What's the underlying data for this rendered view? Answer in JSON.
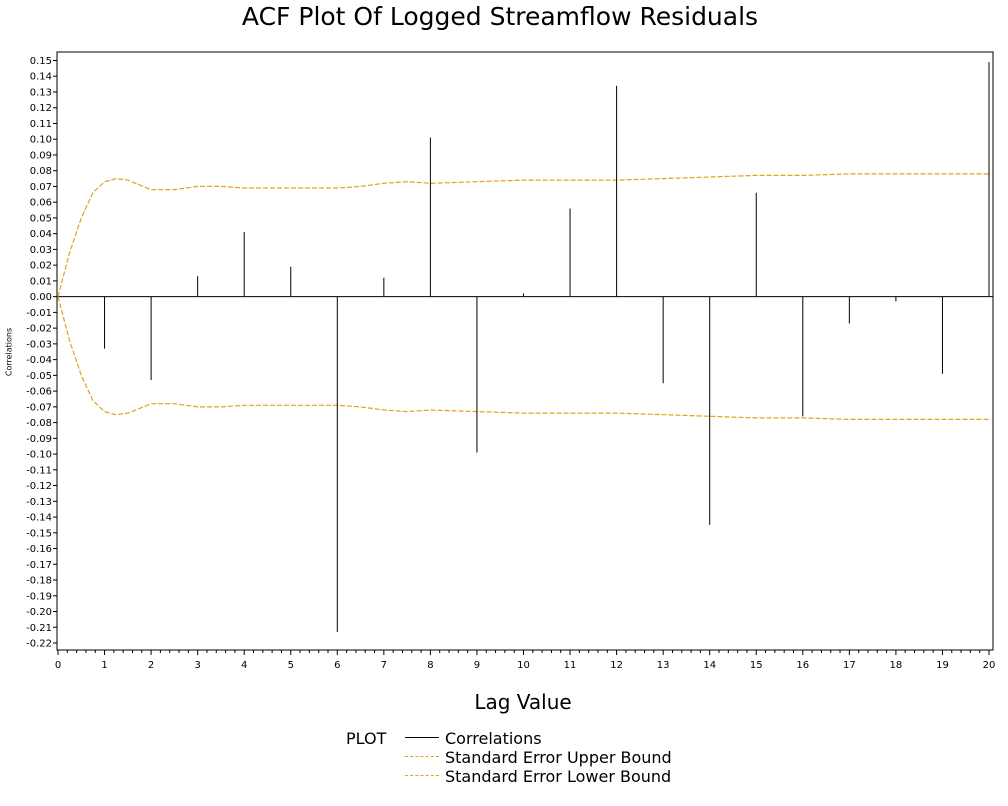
{
  "chart_data": {
    "type": "bar",
    "title": "ACF Plot Of Logged Streamflow Residuals",
    "xlabel": "Lag Value",
    "ylabel": "Correlations",
    "xlim": [
      0,
      20
    ],
    "ylim": [
      -0.22,
      0.15
    ],
    "x_ticks": [
      0,
      1,
      2,
      3,
      4,
      5,
      6,
      7,
      8,
      9,
      10,
      11,
      12,
      13,
      14,
      15,
      16,
      17,
      18,
      19,
      20
    ],
    "y_ticks": [
      "0.15",
      "0.14",
      "0.13",
      "0.12",
      "0.11",
      "0.10",
      "0.09",
      "0.08",
      "0.07",
      "0.06",
      "0.05",
      "0.04",
      "0.03",
      "0.02",
      "0.01",
      "0.00",
      "-0.01",
      "-0.02",
      "-0.03",
      "-0.04",
      "-0.05",
      "-0.06",
      "-0.07",
      "-0.08",
      "-0.09",
      "-0.10",
      "-0.11",
      "-0.12",
      "-0.13",
      "-0.14",
      "-0.15",
      "-0.16",
      "-0.17",
      "-0.18",
      "-0.19",
      "-0.20",
      "-0.21",
      "-0.22"
    ],
    "series": [
      {
        "name": "Correlations",
        "color": "#000000",
        "style": "needle",
        "x": [
          1,
          2,
          3,
          4,
          5,
          6,
          7,
          8,
          9,
          10,
          11,
          12,
          13,
          14,
          15,
          16,
          17,
          18,
          19,
          20
        ],
        "values": [
          -0.033,
          -0.053,
          0.013,
          0.041,
          0.019,
          -0.213,
          0.012,
          0.101,
          -0.099,
          0.002,
          0.056,
          0.134,
          -0.055,
          -0.145,
          0.066,
          -0.076,
          -0.017,
          -0.003,
          -0.049,
          0.149
        ]
      },
      {
        "name": "Standard Error Upper Bound",
        "color": "#e0a41c",
        "style": "dashed",
        "x": [
          0,
          0.25,
          0.5,
          0.75,
          1,
          1.25,
          1.5,
          1.75,
          2,
          2.5,
          3,
          3.5,
          4,
          5,
          6,
          6.5,
          7,
          7.5,
          8,
          9,
          10,
          11,
          12,
          13,
          14,
          15,
          16,
          17,
          18,
          19,
          20
        ],
        "values": [
          0.0,
          0.028,
          0.05,
          0.066,
          0.073,
          0.075,
          0.074,
          0.071,
          0.068,
          0.068,
          0.07,
          0.07,
          0.069,
          0.069,
          0.069,
          0.07,
          0.072,
          0.073,
          0.072,
          0.073,
          0.074,
          0.074,
          0.074,
          0.075,
          0.076,
          0.077,
          0.077,
          0.078,
          0.078,
          0.078,
          0.078
        ]
      },
      {
        "name": "Standard Error Lower Bound",
        "color": "#e0a41c",
        "style": "dashed",
        "x": [
          0,
          0.25,
          0.5,
          0.75,
          1,
          1.25,
          1.5,
          1.75,
          2,
          2.5,
          3,
          3.5,
          4,
          5,
          6,
          6.5,
          7,
          7.5,
          8,
          9,
          10,
          11,
          12,
          13,
          14,
          15,
          16,
          17,
          18,
          19,
          20
        ],
        "values": [
          0.0,
          -0.028,
          -0.05,
          -0.066,
          -0.073,
          -0.075,
          -0.074,
          -0.071,
          -0.068,
          -0.068,
          -0.07,
          -0.07,
          -0.069,
          -0.069,
          -0.069,
          -0.07,
          -0.072,
          -0.073,
          -0.072,
          -0.073,
          -0.074,
          -0.074,
          -0.074,
          -0.075,
          -0.076,
          -0.077,
          -0.077,
          -0.078,
          -0.078,
          -0.078,
          -0.078
        ]
      }
    ],
    "legend": {
      "title": "PLOT",
      "position": "bottom",
      "items": [
        "Correlations",
        "Standard Error Upper Bound",
        "Standard Error Lower Bound"
      ]
    },
    "grid": false
  }
}
